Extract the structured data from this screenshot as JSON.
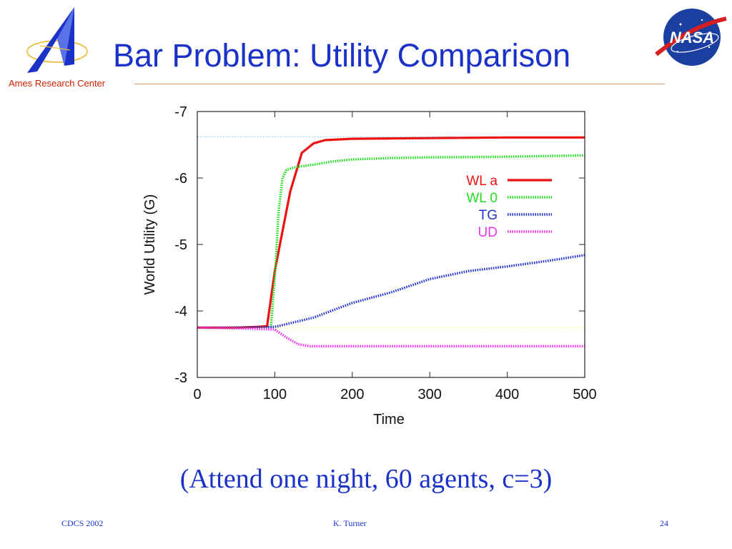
{
  "slide": {
    "title": "Bar Problem: Utility Comparison",
    "organization": "Ames Research Center",
    "subtitle": "(Attend one night, 60 agents, c=3)",
    "footer_left": "CDCS 2002",
    "footer_center": "K. Turner",
    "footer_right": "24",
    "nasa_logo_text": "NASA",
    "colors": {
      "title": "#1a32c8",
      "org": "#cc2200",
      "rule": "#e89a70"
    },
    "icons": [
      "ames-logo-icon",
      "nasa-logo-icon"
    ]
  },
  "chart_data": {
    "type": "line",
    "xlabel": "Time",
    "ylabel": "World Utility (G)",
    "xlim": [
      0,
      500
    ],
    "ylim": [
      -3,
      -7
    ],
    "xticks": [
      0,
      100,
      200,
      300,
      400,
      500
    ],
    "yticks": [
      -7,
      -6,
      -5,
      -4,
      -3
    ],
    "grid": false,
    "legend_position": "right",
    "reference_lines": [
      {
        "y": -6.62,
        "color": "#7fd8ff"
      },
      {
        "y": -3.75,
        "color": "#ffff70"
      }
    ],
    "series": [
      {
        "name": "WL a",
        "color": "#ee1111",
        "style": "solid",
        "x": [
          0,
          50,
          75,
          90,
          100,
          110,
          120,
          135,
          150,
          165,
          200,
          300,
          400,
          500
        ],
        "y": [
          -3.75,
          -3.75,
          -3.76,
          -3.77,
          -4.6,
          -5.2,
          -5.8,
          -6.38,
          -6.52,
          -6.57,
          -6.59,
          -6.6,
          -6.61,
          -6.61
        ]
      },
      {
        "name": "WL 0",
        "color": "#22dd22",
        "style": "dotted",
        "x": [
          0,
          50,
          95,
          100,
          105,
          110,
          115,
          125,
          150,
          175,
          200,
          250,
          300,
          400,
          500
        ],
        "y": [
          -3.75,
          -3.74,
          -3.76,
          -4.5,
          -5.5,
          -6.0,
          -6.12,
          -6.16,
          -6.2,
          -6.25,
          -6.28,
          -6.3,
          -6.31,
          -6.32,
          -6.34
        ]
      },
      {
        "name": "TG",
        "color": "#2233cc",
        "style": "dotted",
        "x": [
          0,
          50,
          100,
          150,
          200,
          250,
          300,
          350,
          400,
          450,
          500
        ],
        "y": [
          -3.75,
          -3.75,
          -3.76,
          -3.9,
          -4.12,
          -4.28,
          -4.48,
          -4.6,
          -4.67,
          -4.75,
          -4.84
        ]
      },
      {
        "name": "UD",
        "color": "#ee33ee",
        "style": "dotted",
        "x": [
          0,
          50,
          100,
          115,
          130,
          145,
          200,
          300,
          400,
          500
        ],
        "y": [
          -3.75,
          -3.74,
          -3.72,
          -3.6,
          -3.5,
          -3.47,
          -3.47,
          -3.47,
          -3.47,
          -3.47
        ]
      }
    ]
  }
}
